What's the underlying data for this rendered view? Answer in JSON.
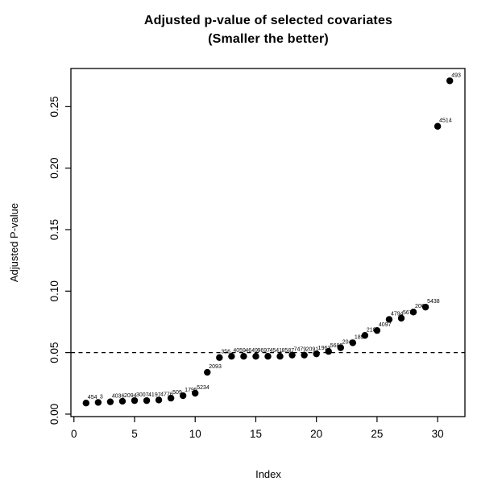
{
  "figure": {
    "title_line1": "Adjusted p-value of selected covariates",
    "title_line2": "(Smaller the better)",
    "xlabel": "Index",
    "ylabel": "Adjusted P-value"
  },
  "chart_data": {
    "type": "scatter",
    "title": "Adjusted p-value of selected covariates (Smaller the better)",
    "xlabel": "Index",
    "ylabel": "Adjusted P-value",
    "legend": "none",
    "grid": false,
    "point_color": "#000000",
    "background_color": "#ffffff",
    "xlim": [
      -0.25,
      32.25
    ],
    "ylim": [
      -0.002,
      0.281
    ],
    "x_ticks": [
      "0",
      "5",
      "10",
      "15",
      "20",
      "25",
      "30"
    ],
    "x_tick_values": [
      0,
      5,
      10,
      15,
      20,
      25,
      30
    ],
    "y_ticks": [
      "0.00",
      "0.05",
      "0.10",
      "0.15",
      "0.20",
      "0.25"
    ],
    "y_tick_values": [
      0.0,
      0.05,
      0.1,
      0.15,
      0.2,
      0.25
    ],
    "threshold_line": {
      "y": 0.05,
      "style": "dashed",
      "color": "#000000"
    },
    "points": [
      {
        "x": 1,
        "y": 0.009,
        "label": "454"
      },
      {
        "x": 2,
        "y": 0.0095,
        "label": "3"
      },
      {
        "x": 3,
        "y": 0.01,
        "label": "4036"
      },
      {
        "x": 4,
        "y": 0.0105,
        "label": "2094"
      },
      {
        "x": 5,
        "y": 0.011,
        "label": "3007"
      },
      {
        "x": 6,
        "y": 0.011,
        "label": "4197"
      },
      {
        "x": 7,
        "y": 0.0115,
        "label": "4776"
      },
      {
        "x": 8,
        "y": 0.013,
        "label": "509"
      },
      {
        "x": 9,
        "y": 0.015,
        "label": "1795"
      },
      {
        "x": 10,
        "y": 0.017,
        "label": "5234"
      },
      {
        "x": 11,
        "y": 0.034,
        "label": "2093"
      },
      {
        "x": 12,
        "y": 0.046,
        "label": "356"
      },
      {
        "x": 13,
        "y": 0.047,
        "label": "4059"
      },
      {
        "x": 14,
        "y": 0.047,
        "label": "4649"
      },
      {
        "x": 15,
        "y": 0.047,
        "label": "9697"
      },
      {
        "x": 16,
        "y": 0.047,
        "label": "4541"
      },
      {
        "x": 17,
        "y": 0.047,
        "label": "8587"
      },
      {
        "x": 18,
        "y": 0.048,
        "label": "7479"
      },
      {
        "x": 19,
        "y": 0.048,
        "label": "2091"
      },
      {
        "x": 20,
        "y": 0.049,
        "label": "1963"
      },
      {
        "x": 21,
        "y": 0.051,
        "label": "5682"
      },
      {
        "x": 22,
        "y": 0.054,
        "label": "2046"
      },
      {
        "x": 23,
        "y": 0.058,
        "label": "189"
      },
      {
        "x": 24,
        "y": 0.064,
        "label": "2104"
      },
      {
        "x": 25,
        "y": 0.068,
        "label": "4097"
      },
      {
        "x": 26,
        "y": 0.077,
        "label": "4794"
      },
      {
        "x": 27,
        "y": 0.078,
        "label": "5674"
      },
      {
        "x": 28,
        "y": 0.083,
        "label": "2065"
      },
      {
        "x": 29,
        "y": 0.087,
        "label": "5438"
      },
      {
        "x": 30,
        "y": 0.234,
        "label": "4514"
      },
      {
        "x": 31,
        "y": 0.271,
        "label": "493"
      }
    ]
  }
}
